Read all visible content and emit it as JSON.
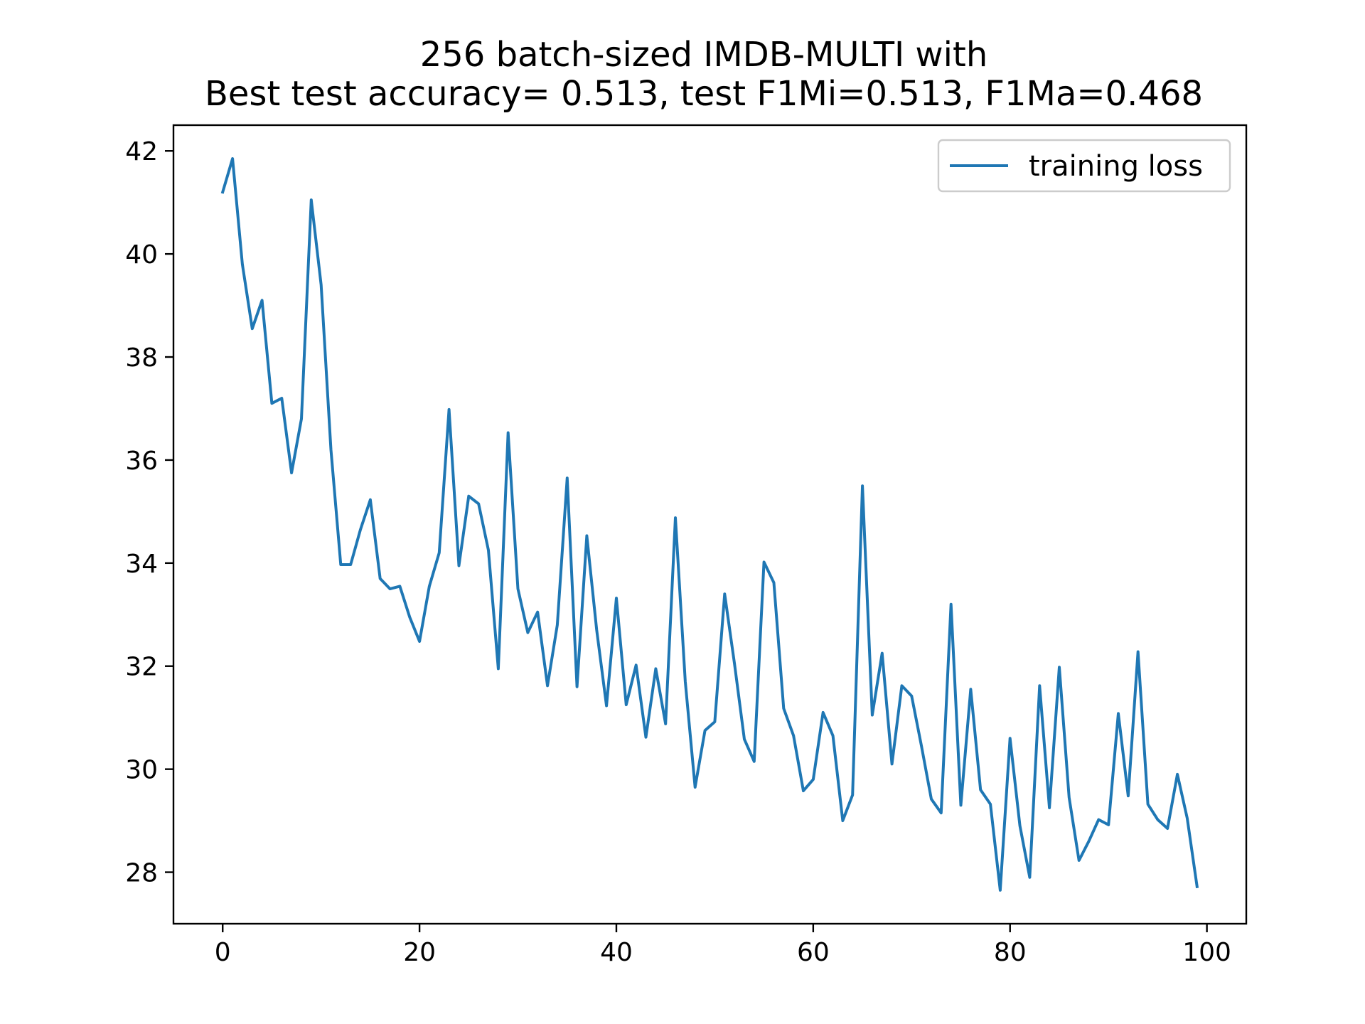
{
  "chart_data": {
    "type": "line",
    "title_lines": [
      "256 batch-sized IMDB-MULTI with",
      "Best test accuracy= 0.513, test F1Mi=0.513, F1Ma=0.468"
    ],
    "xlabel": "",
    "ylabel": "",
    "xlim": [
      -5,
      104
    ],
    "ylim": [
      27.0,
      42.5
    ],
    "xticks": [
      0,
      20,
      40,
      60,
      80,
      100
    ],
    "yticks": [
      28,
      30,
      32,
      34,
      36,
      38,
      40,
      42
    ],
    "grid": false,
    "legend_position": "top-right",
    "series": [
      {
        "name": "training loss",
        "color": "#1f77b4",
        "x": [
          0,
          1,
          2,
          3,
          4,
          5,
          6,
          7,
          8,
          9,
          10,
          11,
          12,
          13,
          14,
          15,
          16,
          17,
          18,
          19,
          20,
          21,
          22,
          23,
          24,
          25,
          26,
          27,
          28,
          29,
          30,
          31,
          32,
          33,
          34,
          35,
          36,
          37,
          38,
          39,
          40,
          41,
          42,
          43,
          44,
          45,
          46,
          47,
          48,
          49,
          50,
          51,
          52,
          53,
          54,
          55,
          56,
          57,
          58,
          59,
          60,
          61,
          62,
          63,
          64,
          65,
          66,
          67,
          68,
          69,
          70,
          71,
          72,
          73,
          74,
          75,
          76,
          77,
          78,
          79,
          80,
          81,
          82,
          83,
          84,
          85,
          86,
          87,
          88,
          89,
          90,
          91,
          92,
          93,
          94,
          95,
          96,
          97,
          98,
          99
        ],
        "y": [
          41.2,
          41.85,
          39.8,
          38.55,
          39.1,
          37.1,
          37.2,
          35.75,
          36.8,
          41.05,
          39.4,
          36.2,
          33.97,
          33.97,
          34.65,
          35.23,
          33.7,
          33.5,
          33.55,
          32.95,
          32.48,
          33.55,
          34.2,
          36.98,
          33.95,
          35.3,
          35.15,
          34.25,
          31.95,
          36.53,
          33.5,
          32.65,
          33.05,
          31.62,
          32.8,
          35.65,
          31.6,
          34.53,
          32.7,
          31.23,
          33.32,
          31.25,
          32.02,
          30.62,
          31.95,
          30.88,
          34.88,
          31.7,
          29.65,
          30.75,
          30.92,
          33.4,
          32.05,
          30.58,
          30.15,
          34.02,
          33.62,
          31.18,
          30.65,
          29.58,
          29.8,
          31.1,
          30.65,
          29.0,
          29.5,
          35.5,
          31.05,
          32.25,
          30.1,
          31.62,
          31.42,
          30.45,
          29.42,
          29.15,
          33.2,
          29.3,
          31.55,
          29.6,
          29.32,
          27.65,
          30.6,
          28.9,
          27.9,
          31.62,
          29.25,
          31.98,
          29.45,
          28.23,
          28.6,
          29.02,
          28.92,
          31.08,
          29.48,
          32.28,
          29.32,
          29.02,
          28.85,
          29.9,
          29.05,
          27.72
        ]
      }
    ]
  }
}
